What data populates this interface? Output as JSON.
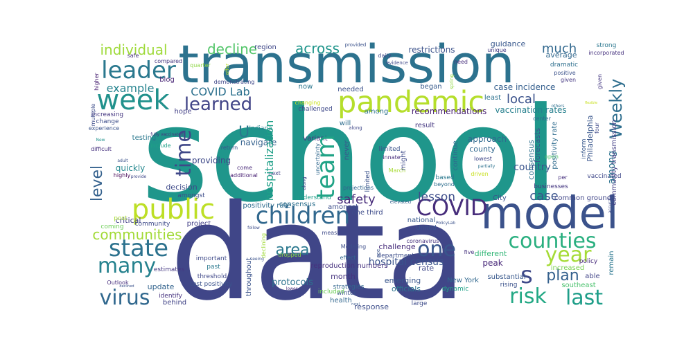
{
  "words": [
    {
      "text": "school",
      "color": "#1f968b"
    },
    {
      "text": "data",
      "color": "#404688"
    },
    {
      "text": "transmission",
      "color": "#2c728e"
    },
    {
      "text": "model",
      "color": "#3b528b"
    },
    {
      "text": "pandemic",
      "color": "#b5de2b"
    },
    {
      "text": "week",
      "color": "#21918c"
    },
    {
      "text": "leader",
      "color": "#2a788e"
    },
    {
      "text": "team",
      "color": "#20a386"
    },
    {
      "text": "public",
      "color": "#bddf26"
    },
    {
      "text": "children",
      "color": "#31688e"
    },
    {
      "text": "COVID",
      "color": "#472d7b"
    },
    {
      "text": "state",
      "color": "#2c728e"
    },
    {
      "text": "many",
      "color": "#26828e"
    },
    {
      "text": "virus",
      "color": "#31688e"
    },
    {
      "text": "counties",
      "color": "#29af7f"
    },
    {
      "text": "year",
      "color": "#a5db36"
    },
    {
      "text": "risk",
      "color": "#22a884"
    },
    {
      "text": "last",
      "color": "#1f9e89"
    },
    {
      "text": "one",
      "color": "#39568c"
    },
    {
      "text": "s",
      "color": "#3e4989"
    },
    {
      "text": "time",
      "color": "#3f4788"
    },
    {
      "text": "learned",
      "color": "#414487"
    },
    {
      "text": "Weekly",
      "color": "#2e6e8e"
    },
    {
      "text": "level",
      "color": "#34618d"
    },
    {
      "text": "communities",
      "color": "#a2da37"
    },
    {
      "text": "area",
      "color": "#2a788e"
    },
    {
      "text": "plan",
      "color": "#34608d"
    },
    {
      "text": "hospitalization",
      "color": "#1fa088"
    },
    {
      "text": "U",
      "color": "#2a788e"
    },
    {
      "text": "individual",
      "color": "#9fda3a"
    },
    {
      "text": "decline",
      "color": "#52c569"
    },
    {
      "text": "across",
      "color": "#1f958b"
    },
    {
      "text": "much",
      "color": "#31688e"
    },
    {
      "text": "local",
      "color": "#3b528b"
    },
    {
      "text": "example",
      "color": "#25838e"
    },
    {
      "text": "COVID Lab",
      "color": "#2d718e"
    },
    {
      "text": "lesson",
      "color": "#3d4d8a"
    },
    {
      "text": "safety",
      "color": "#472c7a"
    },
    {
      "text": "case",
      "color": "#3a548c"
    },
    {
      "text": "among",
      "color": "#2c728e"
    },
    {
      "text": "recommendations",
      "color": "#482071"
    },
    {
      "text": "restrictions",
      "color": "#3b528b"
    },
    {
      "text": "vaccination rates",
      "color": "#27808e"
    },
    {
      "text": "case incidence",
      "color": "#355f8d"
    },
    {
      "text": "approach",
      "color": "#30698e"
    },
    {
      "text": "county",
      "color": "#31688e"
    },
    {
      "text": "country",
      "color": "#3a548c"
    },
    {
      "text": "quickly",
      "color": "#24878e"
    },
    {
      "text": "decision",
      "color": "#3e4a89"
    },
    {
      "text": "critical",
      "color": "#424186"
    },
    {
      "text": "providing",
      "color": "#3e4989"
    },
    {
      "text": "navigate",
      "color": "#34618d"
    },
    {
      "text": "forecasts",
      "color": "#3b528b"
    },
    {
      "text": "guidance",
      "color": "#38588c"
    },
    {
      "text": "average",
      "color": "#31688e"
    },
    {
      "text": "region",
      "color": "#3f4788"
    },
    {
      "text": "now",
      "color": "#2a768e"
    },
    {
      "text": "needed",
      "color": "#3b518b"
    },
    {
      "text": "began",
      "color": "#375a8c"
    },
    {
      "text": "least",
      "color": "#2c718e"
    },
    {
      "text": "will",
      "color": "#2e6d8e"
    },
    {
      "text": "result",
      "color": "#453781"
    },
    {
      "text": "variant",
      "color": "#46307e"
    },
    {
      "text": "never",
      "color": "#37598c"
    },
    {
      "text": "might",
      "color": "#3e4a89"
    },
    {
      "text": "continue",
      "color": "#2f6b8e"
    },
    {
      "text": "Philadelphia",
      "color": "#39568c"
    },
    {
      "text": "positivity rate",
      "color": "#2f6c8e"
    },
    {
      "text": "consensus",
      "color": "#2d708e"
    },
    {
      "text": "amongst",
      "color": "#3d4e8a"
    },
    {
      "text": "one third",
      "color": "#3e4c8a"
    },
    {
      "text": "national",
      "color": "#38598c"
    },
    {
      "text": "City",
      "color": "#3b528b"
    },
    {
      "text": "common ground",
      "color": "#404588"
    },
    {
      "text": "remain",
      "color": "#2a768e"
    },
    {
      "text": "community transmission",
      "color": "#433e85"
    },
    {
      "text": "challenge",
      "color": "#472d7b"
    },
    {
      "text": "department",
      "color": "#3d4e8a"
    },
    {
      "text": "hospital census",
      "color": "#3a548c"
    },
    {
      "text": "reproduction numbers",
      "color": "#46317e"
    },
    {
      "text": "rate",
      "color": "#3f4889"
    },
    {
      "text": "peak",
      "color": "#482979"
    },
    {
      "text": "different",
      "color": "#35b779"
    },
    {
      "text": "month",
      "color": "#46337f"
    },
    {
      "text": "emerging",
      "color": "#39568c"
    },
    {
      "text": "protocols",
      "color": "#2c728e"
    },
    {
      "text": "officials",
      "color": "#2c738e"
    },
    {
      "text": "New York",
      "color": "#31688e"
    },
    {
      "text": "update",
      "color": "#33638d"
    },
    {
      "text": "health",
      "color": "#31678e"
    },
    {
      "text": "response",
      "color": "#3d4e8a"
    },
    {
      "text": "identify",
      "color": "#46337f"
    },
    {
      "text": "throughout",
      "color": "#3a538b"
    },
    {
      "text": "important",
      "color": "#3e4a89"
    },
    {
      "text": "past",
      "color": "#2a788e"
    },
    {
      "text": "threshold",
      "color": "#3f4788"
    },
    {
      "text": "test positivity",
      "color": "#3b528b"
    },
    {
      "text": "Outlook",
      "color": "#472f7d"
    },
    {
      "text": "behind",
      "color": "#414487"
    },
    {
      "text": "estimates",
      "color": "#453882"
    },
    {
      "text": "project",
      "color": "#423f85"
    },
    {
      "text": "community",
      "color": "#3e4a89"
    },
    {
      "text": "post",
      "color": "#a8db34"
    },
    {
      "text": "coming",
      "color": "#6ece58"
    },
    {
      "text": "increased",
      "color": "#7ad151"
    },
    {
      "text": "policy",
      "color": "#472a7a"
    },
    {
      "text": "able",
      "color": "#414487"
    },
    {
      "text": "southeast",
      "color": "#4ac16d"
    },
    {
      "text": "substantial",
      "color": "#38588c"
    },
    {
      "text": "rising",
      "color": "#3b528b"
    },
    {
      "text": "dynamic",
      "color": "#1fa187"
    },
    {
      "text": "strategies",
      "color": "#32658e"
    },
    {
      "text": "winter",
      "color": "#3b528b"
    },
    {
      "text": "included",
      "color": "#6ece58"
    },
    {
      "text": "large",
      "color": "#3e4c8a"
    },
    {
      "text": "businesses",
      "color": "#453781"
    },
    {
      "text": "vaccinated",
      "color": "#3f4889"
    },
    {
      "text": "per",
      "color": "#46307e"
    },
    {
      "text": "inform",
      "color": "#38588c"
    },
    {
      "text": "four",
      "color": "#3e4989"
    },
    {
      "text": "given",
      "color": "#453882"
    },
    {
      "text": "positive",
      "color": "#3b528b"
    },
    {
      "text": "dramatic",
      "color": "#2e6f8e"
    },
    {
      "text": "incorporated",
      "color": "#46327e"
    },
    {
      "text": "strong",
      "color": "#2a768e"
    },
    {
      "text": "unique",
      "color": "#433d84"
    },
    {
      "text": "need",
      "color": "#472f7d"
    },
    {
      "text": "spring",
      "color": "#90d743"
    },
    {
      "text": "daily",
      "color": "#3f4788"
    },
    {
      "text": "provided",
      "color": "#3b528b"
    },
    {
      "text": "evidence",
      "color": "#3f4889"
    },
    {
      "text": "offer",
      "color": "#b8de29"
    },
    {
      "text": "quarter",
      "color": "#8ed645"
    },
    {
      "text": "demonstrating",
      "color": "#3f4788"
    },
    {
      "text": "compared",
      "color": "#453781"
    },
    {
      "text": "safe",
      "color": "#46327e"
    },
    {
      "text": "blog",
      "color": "#482576"
    },
    {
      "text": "higher",
      "color": "#482071"
    },
    {
      "text": "hope",
      "color": "#423f85"
    },
    {
      "text": "multiple",
      "color": "#3d4d8a"
    },
    {
      "text": "increasing",
      "color": "#453781"
    },
    {
      "text": "change",
      "color": "#3d4e8a"
    },
    {
      "text": "experience",
      "color": "#3a538b"
    },
    {
      "text": "testing",
      "color": "#2a788e"
    },
    {
      "text": "fully vaccinated",
      "color": "#46327e"
    },
    {
      "text": "difficult",
      "color": "#46307e"
    },
    {
      "text": "New",
      "color": "#20928c"
    },
    {
      "text": "adult",
      "color": "#3b528b"
    },
    {
      "text": "include",
      "color": "#1fa187"
    },
    {
      "text": "highly",
      "color": "#440154"
    },
    {
      "text": "provide",
      "color": "#3f4889"
    },
    {
      "text": "changing",
      "color": "#cae11f"
    },
    {
      "text": "challenged",
      "color": "#3e4989"
    },
    {
      "text": "Indiana",
      "color": "#26828e"
    },
    {
      "text": "return",
      "color": "#3a548c"
    },
    {
      "text": "come",
      "color": "#482878"
    },
    {
      "text": "additional",
      "color": "#482173"
    },
    {
      "text": "next",
      "color": "#414487"
    },
    {
      "text": "uncertainty",
      "color": "#31688e"
    },
    {
      "text": "along",
      "color": "#3f4788"
    },
    {
      "text": "limited",
      "color": "#3b528b"
    },
    {
      "text": "innate",
      "color": "#472d7b"
    },
    {
      "text": "March",
      "color": "#a8db34"
    },
    {
      "text": "lowest",
      "color": "#3f4788"
    },
    {
      "text": "partially",
      "color": "#2c718e"
    },
    {
      "text": "driven",
      "color": "#c8e020"
    },
    {
      "text": "projections",
      "color": "#32648e"
    },
    {
      "text": "based",
      "color": "#2a788e"
    },
    {
      "text": "beyond",
      "color": "#2e6e8e"
    },
    {
      "text": "elevated",
      "color": "#33638d"
    },
    {
      "text": "United",
      "color": "#39558c"
    },
    {
      "text": "coronavirus",
      "color": "#46317e"
    },
    {
      "text": "Modeling",
      "color": "#3d4e8a"
    },
    {
      "text": "effect",
      "color": "#31678e"
    },
    {
      "text": "see",
      "color": "#3a548c"
    },
    {
      "text": "dropped",
      "color": "#8bd646"
    },
    {
      "text": "declining",
      "color": "#a0da39"
    },
    {
      "text": "seeing",
      "color": "#3b528b"
    },
    {
      "text": "measure",
      "color": "#3e4a89"
    },
    {
      "text": "follow",
      "color": "#3d4d8a"
    },
    {
      "text": "PolicyLab",
      "color": "#3b528b"
    },
    {
      "text": "five",
      "color": "#46337f"
    },
    {
      "text": "understand",
      "color": "#1f9e89"
    },
    {
      "text": "open",
      "color": "#52c569"
    },
    {
      "text": "center",
      "color": "#2f6b8e"
    },
    {
      "text": "others",
      "color": "#2e6f8e"
    },
    {
      "text": "flexible",
      "color": "#c8e020"
    },
    {
      "text": "accurate",
      "color": "#3e4a89"
    },
    {
      "text": "lower",
      "color": "#472c7a"
    },
    {
      "text": "declined",
      "color": "#3b528b"
    },
    {
      "text": "rural",
      "color": "#38588c"
    },
    {
      "text": "still",
      "color": "#482374"
    },
    {
      "text": "long",
      "color": "#453882"
    },
    {
      "text": "wanted",
      "color": "#3f4788"
    },
    {
      "text": "assumptions",
      "color": "#3d4d8a"
    },
    {
      "text": "offered",
      "color": "#414487"
    },
    {
      "text": "nature",
      "color": "#3e4989"
    },
    {
      "text": "interpretation",
      "color": "#482173"
    }
  ]
}
